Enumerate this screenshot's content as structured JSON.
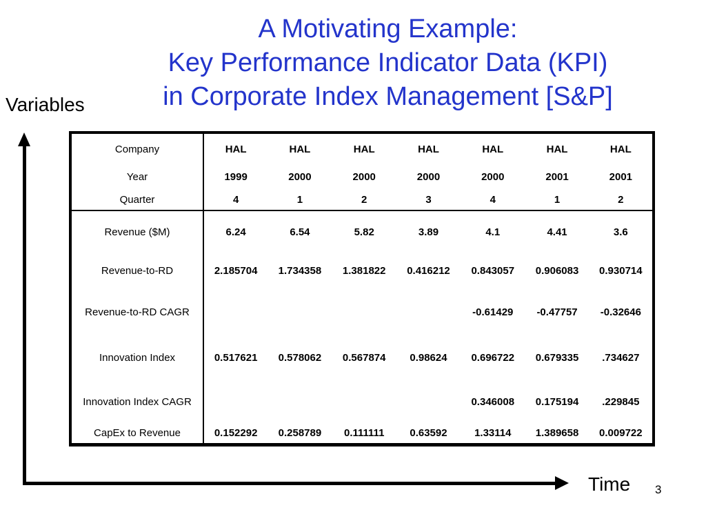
{
  "slide": {
    "title_lines": [
      "A Motivating Example:",
      "Key Performance Indicator Data (KPI)",
      "in Corporate Index Management [S&P]"
    ],
    "title_color": "#2334CB",
    "page_number": "3"
  },
  "axes": {
    "y_label": "Variables",
    "x_label": "Time"
  },
  "table": {
    "columns": 7,
    "header_rows": [
      {
        "label": "Company",
        "values": [
          "HAL",
          "HAL",
          "HAL",
          "HAL",
          "HAL",
          "HAL",
          "HAL"
        ]
      },
      {
        "label": "Year",
        "values": [
          "1999",
          "2000",
          "2000",
          "2000",
          "2000",
          "2001",
          "2001"
        ]
      },
      {
        "label": "Quarter",
        "values": [
          "4",
          "1",
          "2",
          "3",
          "4",
          "1",
          "2"
        ]
      }
    ],
    "data_rows": [
      {
        "label": "Revenue ($M)",
        "values": [
          "6.24",
          "6.54",
          "5.82",
          "3.89",
          "4.1",
          "4.41",
          "3.6"
        ]
      },
      {
        "label": "Revenue-to-RD",
        "values": [
          "2.185704",
          "1.734358",
          "1.381822",
          "0.416212",
          "0.843057",
          "0.906083",
          "0.930714"
        ]
      },
      {
        "label": "Revenue-to-RD CAGR",
        "values": [
          "",
          "",
          "",
          "",
          "-0.61429",
          "-0.47757",
          "-0.32646"
        ]
      },
      {
        "label": "Innovation Index",
        "values": [
          "0.517621",
          "0.578062",
          "0.567874",
          "0.98624",
          "0.696722",
          "0.679335",
          ".734627"
        ]
      },
      {
        "label": "Innovation Index CAGR",
        "values": [
          "",
          "",
          "",
          "",
          "0.346008",
          "0.175194",
          ".229845"
        ]
      },
      {
        "label": "CapEx to Revenue",
        "values": [
          "0.152292",
          "0.258789",
          "0.111111",
          "0.63592",
          "1.33114",
          "1.389658",
          "0.009722"
        ]
      }
    ]
  }
}
